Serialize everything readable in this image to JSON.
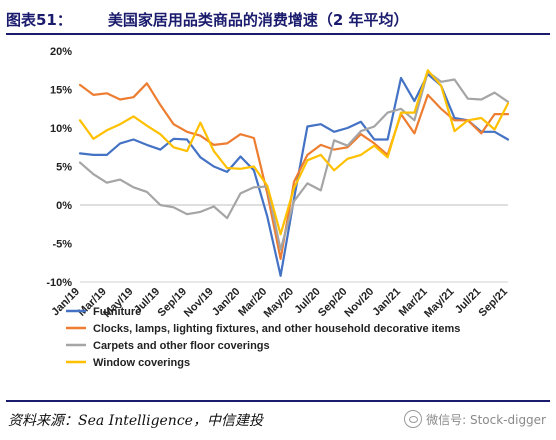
{
  "header": {
    "figure_number": "图表51：",
    "title": "美国家居用品类商品的消费增速（2 年平均）"
  },
  "footer": {
    "source": "资料来源：Sea Intelligence，中信建投",
    "watermark": "微信号: Stock-digger"
  },
  "chart_data": {
    "type": "line",
    "x": [
      "Jan/19",
      "Feb/19",
      "Mar/19",
      "Apr/19",
      "May/19",
      "Jun/19",
      "Jul/19",
      "Aug/19",
      "Sep/19",
      "Oct/19",
      "Nov/19",
      "Dec/19",
      "Jan/20",
      "Feb/20",
      "Mar/20",
      "Apr/20",
      "May/20",
      "Jun/20",
      "Jul/20",
      "Aug/20",
      "Sep/20",
      "Oct/20",
      "Nov/20",
      "Dec/20",
      "Jan/21",
      "Feb/21",
      "Mar/21",
      "Apr/21",
      "May/21",
      "Jun/21",
      "Jul/21",
      "Aug/21",
      "Sep/21"
    ],
    "tick_labels": [
      "Jan/19",
      "Mar/19",
      "May/19",
      "Jul/19",
      "Sep/19",
      "Nov/19",
      "Jan/20",
      "Mar/20",
      "May/20",
      "Jul/20",
      "Sep/20",
      "Nov/20",
      "Jan/21",
      "Mar/21",
      "May/21",
      "Jul/21",
      "Sep/21"
    ],
    "ylim": [
      -10,
      20
    ],
    "yticks": [
      -10,
      -5,
      0,
      5,
      10,
      15,
      20
    ],
    "ytick_labels": [
      "-10%",
      "-5%",
      "0%",
      "5%",
      "10%",
      "15%",
      "20%"
    ],
    "legend_position": "bottom",
    "series": [
      {
        "name": "Furniture",
        "color": "#4472c4",
        "values": [
          6.7,
          6.5,
          6.5,
          8.0,
          8.5,
          7.8,
          7.2,
          8.6,
          8.5,
          6.2,
          5.0,
          4.3,
          6.3,
          4.5,
          -1.5,
          -9.2,
          0.8,
          10.2,
          10.5,
          9.5,
          10.0,
          10.8,
          8.5,
          8.5,
          16.5,
          13.5,
          17.0,
          15.5,
          11.3,
          11.0,
          9.5,
          9.5,
          8.5
        ]
      },
      {
        "name": "Clocks, lamps, lighting fixtures, and other household decorative items",
        "color": "#ed7d31",
        "values": [
          15.6,
          14.3,
          14.5,
          13.7,
          14.0,
          15.8,
          13.0,
          10.5,
          9.5,
          9.0,
          7.8,
          8.0,
          9.2,
          8.7,
          1.5,
          -7.0,
          3.0,
          6.5,
          7.8,
          7.2,
          7.5,
          9.2,
          8.0,
          6.5,
          11.8,
          9.3,
          14.3,
          12.5,
          11.0,
          11.0,
          9.3,
          11.8,
          11.8
        ]
      },
      {
        "name": "Carpets and other floor coverings",
        "color": "#a5a5a5",
        "values": [
          5.5,
          4.0,
          2.9,
          3.3,
          2.3,
          1.7,
          0.0,
          -0.3,
          -1.2,
          -0.9,
          -0.2,
          -1.7,
          1.5,
          2.3,
          2.4,
          -5.8,
          0.5,
          2.8,
          1.9,
          8.4,
          7.7,
          9.6,
          10.2,
          12.0,
          12.5,
          11.0,
          17.3,
          16.0,
          16.3,
          13.8,
          13.7,
          14.6,
          13.4
        ]
      },
      {
        "name": "Window coverings",
        "color": "#ffc000",
        "values": [
          11.0,
          8.6,
          9.7,
          10.5,
          11.5,
          10.3,
          9.2,
          7.5,
          7.0,
          10.7,
          7.0,
          4.8,
          4.7,
          5.0,
          2.5,
          -3.8,
          2.2,
          5.8,
          6.5,
          4.5,
          6.0,
          6.5,
          7.7,
          6.2,
          12.0,
          12.0,
          17.5,
          15.5,
          9.6,
          11.0,
          11.3,
          9.8,
          13.2
        ]
      }
    ]
  }
}
